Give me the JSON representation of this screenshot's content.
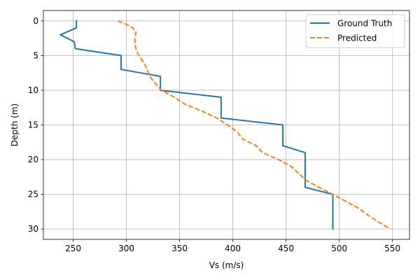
{
  "chart_data": {
    "type": "line",
    "title": "",
    "xlabel": "Vs (m/s)",
    "ylabel": "Depth (m)",
    "xlim": [
      222,
      566
    ],
    "ylim": [
      31.5,
      -1.5
    ],
    "y_inverted": true,
    "xticks": [
      250,
      300,
      350,
      400,
      450,
      500,
      550
    ],
    "yticks": [
      0,
      5,
      10,
      15,
      20,
      25,
      30
    ],
    "grid": true,
    "legend": "top-right",
    "series": [
      {
        "name": "Ground Truth",
        "color": "#1f77b4",
        "style": "solid",
        "points": [
          [
            253,
            0
          ],
          [
            253,
            1
          ],
          [
            238,
            2
          ],
          [
            251,
            3
          ],
          [
            252,
            4
          ],
          [
            295,
            5
          ],
          [
            295,
            7
          ],
          [
            332,
            8
          ],
          [
            332,
            10
          ],
          [
            389,
            11
          ],
          [
            389,
            14
          ],
          [
            447,
            15
          ],
          [
            447,
            18
          ],
          [
            468,
            19
          ],
          [
            468,
            24
          ],
          [
            494,
            25
          ],
          [
            494,
            30
          ]
        ]
      },
      {
        "name": "Predicted",
        "color": "#ff7f0e",
        "style": "dashed",
        "points": [
          [
            292,
            0
          ],
          [
            300,
            0.5
          ],
          [
            306,
            1
          ],
          [
            309,
            1.6
          ],
          [
            308,
            2.5
          ],
          [
            308,
            3.5
          ],
          [
            310,
            4.5
          ],
          [
            314,
            5.5
          ],
          [
            318,
            6.5
          ],
          [
            320,
            7.2
          ],
          [
            322,
            8
          ],
          [
            327,
            9
          ],
          [
            333,
            10
          ],
          [
            345,
            11
          ],
          [
            355,
            12
          ],
          [
            371,
            13
          ],
          [
            385,
            14
          ],
          [
            395,
            15
          ],
          [
            404,
            16
          ],
          [
            409,
            17
          ],
          [
            422,
            18
          ],
          [
            428,
            19
          ],
          [
            443,
            20
          ],
          [
            455,
            21
          ],
          [
            462,
            22
          ],
          [
            469,
            23
          ],
          [
            481,
            24
          ],
          [
            494,
            25
          ],
          [
            506,
            26
          ],
          [
            518,
            27
          ],
          [
            527,
            28
          ],
          [
            537,
            29
          ],
          [
            548,
            30
          ]
        ]
      }
    ]
  }
}
